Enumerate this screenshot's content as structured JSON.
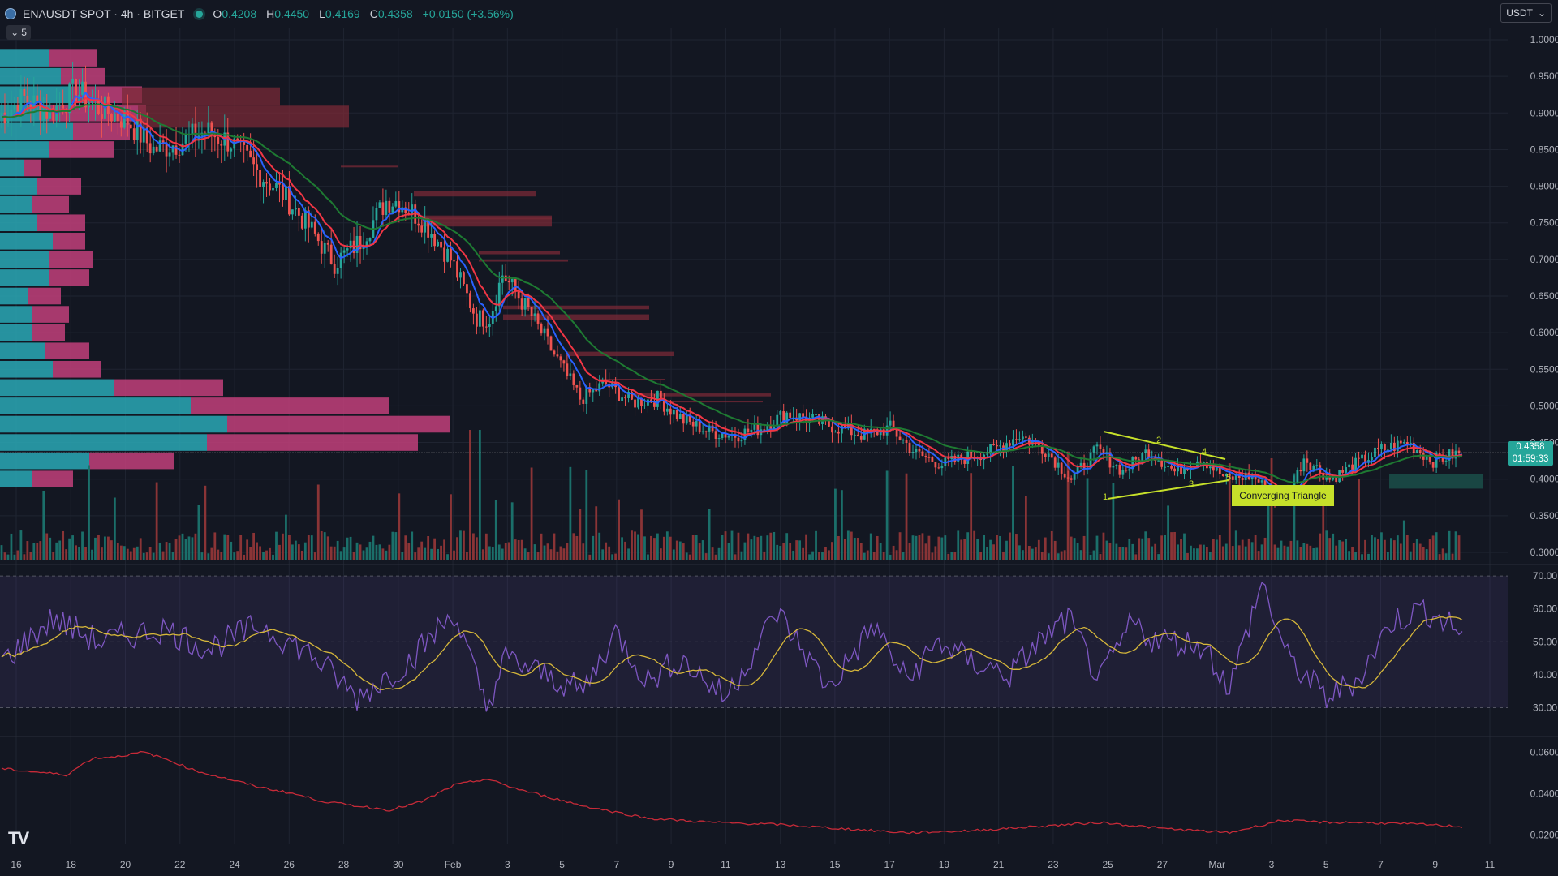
{
  "header": {
    "symbol": "ENAUSDT SPOT · 4h · BITGET",
    "ohlc": [
      {
        "k": "O",
        "v": "0.4208"
      },
      {
        "k": "H",
        "v": "0.4450"
      },
      {
        "k": "L",
        "v": "0.4169"
      },
      {
        "k": "C",
        "v": "0.4358"
      }
    ],
    "change": "+0.0150 (+3.56%)",
    "collapse_label": "5"
  },
  "currency": {
    "label": "USDT"
  },
  "price_tag": {
    "price": "0.4358",
    "countdown": "01:59:33"
  },
  "pattern": {
    "label": "Converging Triangle",
    "points": [
      "1",
      "2",
      "3",
      "4",
      "5"
    ]
  },
  "colors": {
    "bg": "#131722",
    "up": "#26a69a",
    "down": "#ef5350",
    "vol_up": "#1b6f6a",
    "vol_down": "#8a3436",
    "ma_fast": "#2962ff",
    "ma_mid": "#f23645",
    "ma_slow": "#1e7a32",
    "rsi": "#7e57c2",
    "rsi_ma": "#d6b73a",
    "pattern": "#c6e02a"
  },
  "chart_data": [
    {
      "type": "candlestick",
      "title": "ENAUSDT SPOT · 4h · BITGET",
      "ylim": [
        0.29,
        1.01
      ],
      "y_ticks": [
        "1.0000",
        "0.9500",
        "0.9000",
        "0.8500",
        "0.8000",
        "0.7500",
        "0.7000",
        "0.6500",
        "0.6000",
        "0.5500",
        "0.5000",
        "0.4500",
        "0.4000",
        "0.3500",
        "0.3000"
      ],
      "x_ticks": [
        "16",
        "18",
        "20",
        "22",
        "24",
        "26",
        "28",
        "30",
        "Feb",
        "3",
        "5",
        "7",
        "9",
        "11",
        "13",
        "15",
        "17",
        "19",
        "21",
        "23",
        "25",
        "27",
        "Mar",
        "3",
        "5",
        "7",
        "9",
        "11"
      ],
      "last_price": 0.4358,
      "price_path": [
        [
          0,
          0.895
        ],
        [
          8,
          0.92
        ],
        [
          16,
          0.9
        ],
        [
          24,
          0.93
        ],
        [
          32,
          0.905
        ],
        [
          40,
          0.89
        ],
        [
          48,
          0.85
        ],
        [
          56,
          0.86
        ],
        [
          64,
          0.875
        ],
        [
          72,
          0.86
        ],
        [
          80,
          0.82
        ],
        [
          88,
          0.79
        ],
        [
          96,
          0.745
        ],
        [
          104,
          0.695
        ],
        [
          112,
          0.725
        ],
        [
          120,
          0.78
        ],
        [
          124,
          0.78
        ],
        [
          132,
          0.75
        ],
        [
          140,
          0.7
        ],
        [
          148,
          0.62
        ],
        [
          152,
          0.62
        ],
        [
          156,
          0.68
        ],
        [
          164,
          0.63
        ],
        [
          172,
          0.57
        ],
        [
          180,
          0.51
        ],
        [
          188,
          0.53
        ],
        [
          196,
          0.505
        ],
        [
          204,
          0.51
        ],
        [
          212,
          0.48
        ],
        [
          220,
          0.465
        ],
        [
          228,
          0.46
        ],
        [
          236,
          0.47
        ],
        [
          244,
          0.49
        ],
        [
          252,
          0.48
        ],
        [
          260,
          0.47
        ],
        [
          268,
          0.46
        ],
        [
          276,
          0.47
        ],
        [
          284,
          0.435
        ],
        [
          292,
          0.42
        ],
        [
          300,
          0.43
        ],
        [
          308,
          0.44
        ],
        [
          316,
          0.46
        ],
        [
          324,
          0.44
        ],
        [
          332,
          0.4
        ],
        [
          340,
          0.44
        ],
        [
          348,
          0.41
        ],
        [
          356,
          0.44
        ],
        [
          364,
          0.41
        ],
        [
          372,
          0.43
        ],
        [
          380,
          0.4
        ],
        [
          388,
          0.405
        ],
        [
          396,
          0.37
        ],
        [
          400,
          0.385
        ],
        [
          404,
          0.43
        ],
        [
          412,
          0.4
        ],
        [
          420,
          0.42
        ],
        [
          428,
          0.44
        ],
        [
          436,
          0.45
        ],
        [
          444,
          0.425
        ],
        [
          452,
          0.4358
        ]
      ],
      "moving_averages": [
        {
          "color": "#2962ff"
        },
        {
          "color": "#f23645"
        },
        {
          "color": "#1e7a32"
        }
      ]
    },
    {
      "type": "bar",
      "title": "",
      "note_values": "volume pane, unlabeled"
    },
    {
      "type": "line",
      "title": "",
      "ylim": [
        22,
        72
      ],
      "y_ticks": [
        "70.00",
        "60.00",
        "50.00",
        "40.00",
        "30.00"
      ],
      "bands": [
        30,
        70
      ],
      "midline": 50,
      "x": [
        0,
        16,
        30,
        50,
        64,
        80,
        96,
        110,
        126,
        140,
        150,
        156,
        168,
        180,
        190,
        200,
        210,
        224,
        240,
        256,
        270,
        280,
        290,
        300,
        312,
        320,
        330,
        340,
        350,
        356,
        372,
        380,
        390,
        398,
        410,
        420,
        430,
        440,
        452
      ],
      "values": [
        44,
        57,
        50,
        54,
        48,
        55,
        46,
        33,
        44,
        59,
        30,
        45,
        40,
        35,
        53,
        38,
        45,
        33,
        59,
        36,
        55,
        38,
        50,
        44,
        40,
        49,
        57,
        38,
        56,
        51,
        49,
        36,
        68,
        45,
        33,
        39,
        56,
        60,
        53
      ]
    },
    {
      "type": "line",
      "title": "",
      "ylim": [
        0.015,
        0.066
      ],
      "y_ticks": [
        "0.0600",
        "0.0400",
        "0.0200"
      ],
      "x": [
        0,
        20,
        28,
        36,
        44,
        52,
        60,
        70,
        80,
        90,
        100,
        110,
        120,
        130,
        140,
        150,
        160,
        180,
        200,
        220,
        240,
        260,
        280,
        300,
        320,
        340,
        360,
        380,
        396,
        410,
        420,
        440,
        452
      ],
      "values": [
        0.052,
        0.049,
        0.057,
        0.058,
        0.06,
        0.056,
        0.051,
        0.047,
        0.043,
        0.04,
        0.036,
        0.034,
        0.032,
        0.036,
        0.044,
        0.047,
        0.042,
        0.034,
        0.028,
        0.026,
        0.025,
        0.023,
        0.021,
        0.022,
        0.024,
        0.026,
        0.023,
        0.021,
        0.027,
        0.026,
        0.026,
        0.025,
        0.024
      ]
    }
  ]
}
